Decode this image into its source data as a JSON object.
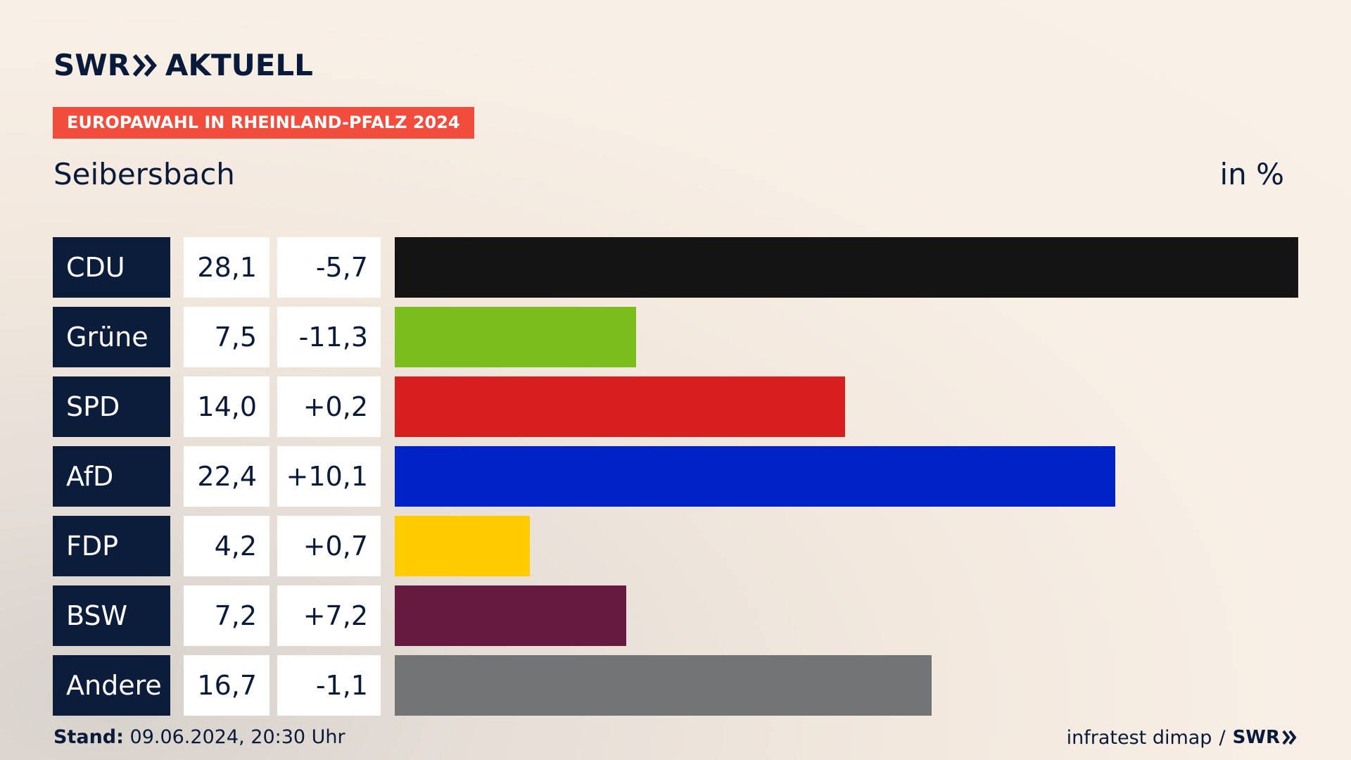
{
  "header": {
    "logo_brand": "SWR",
    "logo_section": "AKTUELL",
    "badge": "EUROPAWAHL IN RHEINLAND-PFALZ 2024",
    "subtitle": "Seibersbach",
    "unit": "in %"
  },
  "footer": {
    "stand_label": "Stand:",
    "stand_value": "09.06.2024, 20:30 Uhr",
    "source": "infratest dimap",
    "separator": "/",
    "brand": "SWR"
  },
  "colors": {
    "navy": "#0c1c3b",
    "badge": "#f24d3c"
  },
  "chart_data": {
    "type": "bar",
    "orientation": "horizontal",
    "title": "Seibersbach",
    "unit": "in %",
    "categories": [
      "CDU",
      "Grüne",
      "SPD",
      "AfD",
      "FDP",
      "BSW",
      "Andere"
    ],
    "values": [
      28.1,
      7.5,
      14.0,
      22.4,
      4.2,
      7.2,
      16.7
    ],
    "value_labels": [
      "28,1",
      "7,5",
      "14,0",
      "22,4",
      "4,2",
      "7,2",
      "16,7"
    ],
    "change_labels": [
      "-5,7",
      "-11,3",
      "+0,2",
      "+10,1",
      "+0,7",
      "+7,2",
      "-1,1"
    ],
    "changes": [
      -5.7,
      -11.3,
      0.2,
      10.1,
      0.7,
      7.2,
      -1.1
    ],
    "bar_colors": [
      "#141414",
      "#7cbd1e",
      "#d71f1f",
      "#0022c6",
      "#ffcc00",
      "#661a3f",
      "#737476"
    ],
    "grid": false,
    "legend": "none"
  }
}
